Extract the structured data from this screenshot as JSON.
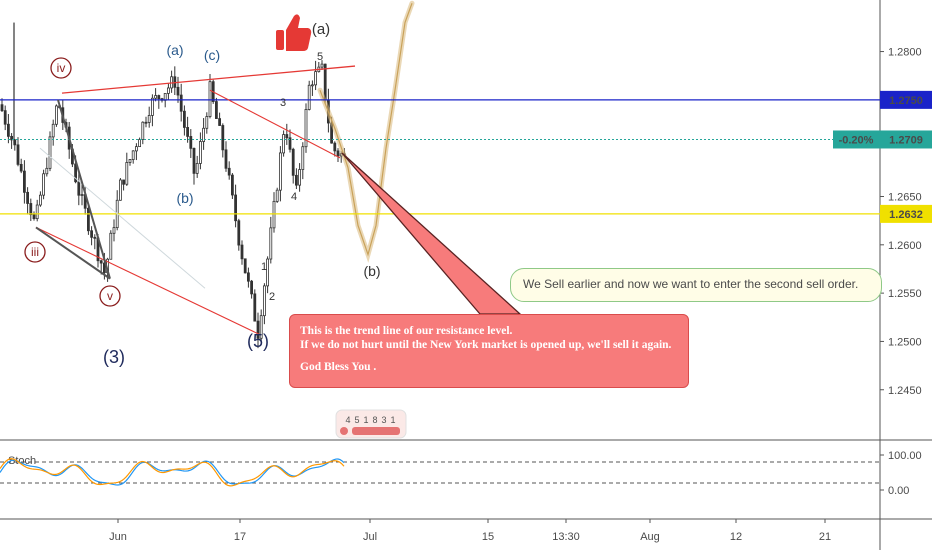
{
  "chart_data": {
    "type": "candlestick",
    "price_axis": {
      "ticks": [
        "1.2800",
        "1.2750",
        "1.2709",
        "1.2650",
        "1.2632",
        "1.2600",
        "1.2550",
        "1.2500",
        "1.2450"
      ],
      "range": [
        1.2398,
        1.2843
      ]
    },
    "time_axis": {
      "ticks": [
        "Jun",
        "17",
        "Jul",
        "15",
        "13:30",
        "Aug",
        "12",
        "21"
      ]
    },
    "price_tags": [
      {
        "value": 1.275,
        "label": "1.2750",
        "color": "#1a23c9"
      },
      {
        "value": 1.2709,
        "label": "1.2709",
        "change": "-0.20%",
        "color": "#26a69a"
      },
      {
        "value": 1.2632,
        "label": "1.2632",
        "color": "#f0e000"
      }
    ],
    "wave_labels": [
      {
        "text": "(a)",
        "color": "#2a5a8c"
      },
      {
        "text": "(c)",
        "color": "#2a5a8c"
      },
      {
        "text": "(b)",
        "color": "#2a5a8c"
      },
      {
        "text": "(a)",
        "color": "#333333"
      },
      {
        "text": "(b)",
        "color": "#333333"
      },
      {
        "text": "(3)",
        "color": "#1f2a5c"
      },
      {
        "text": "(5)",
        "color": "#1f2a5c"
      },
      {
        "text": "1",
        "color": "#333333"
      },
      {
        "text": "2",
        "color": "#333333"
      },
      {
        "text": "3",
        "color": "#333333"
      },
      {
        "text": "4",
        "color": "#333333"
      },
      {
        "text": "5",
        "color": "#333333"
      }
    ],
    "circled_labels": [
      "iv",
      "iii",
      "v"
    ],
    "oscillator": {
      "name": "Stoch",
      "ticks": [
        "100.00",
        "0.00"
      ],
      "range": [
        0,
        100
      ]
    },
    "callout": {
      "line1": "This is the trend line of our resistance level.",
      "line2": "If we do not hurt until the New York market is opened up, we'll sell it again.",
      "line3": "God Bless You ."
    },
    "note": "We Sell earlier and now we want to enter the second sell order.",
    "badge": [
      "4",
      "5",
      "1",
      "8",
      "3",
      "1"
    ],
    "colors": {
      "candle": "#333333",
      "projection": "#d8b87a",
      "trendline": "#e53935",
      "callout_bg": "#f77b7b",
      "note_bg": "#fffde7",
      "stoch_k": "#2196f3",
      "stoch_d": "#ff9800"
    }
  }
}
